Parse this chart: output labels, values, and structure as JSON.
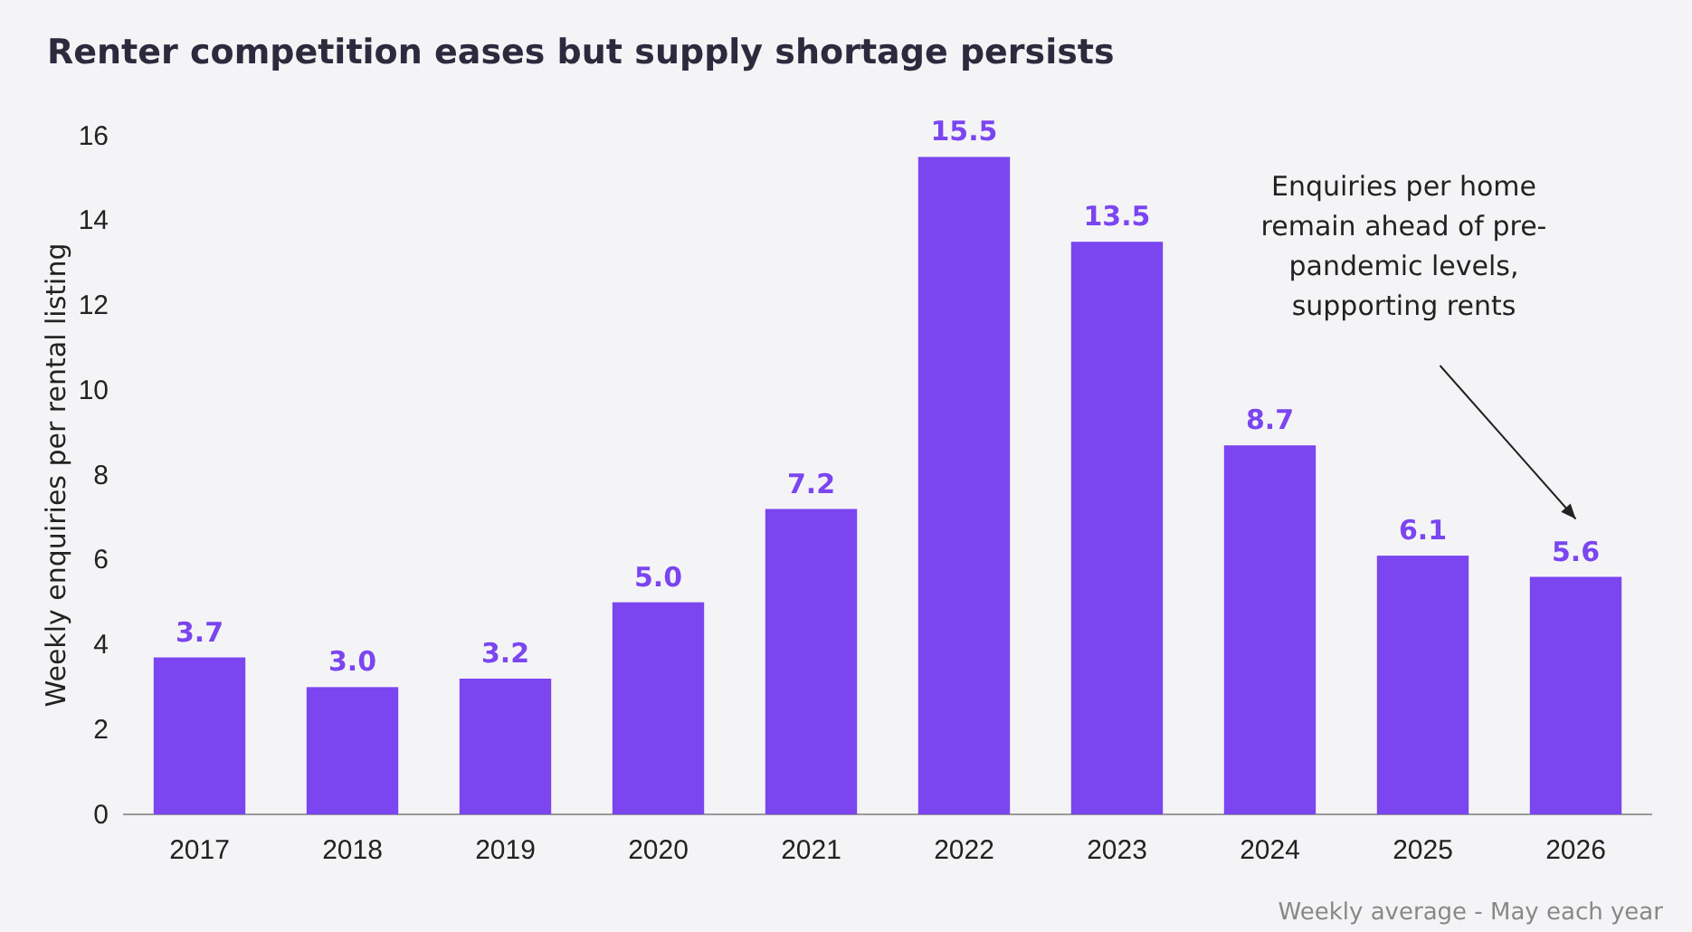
{
  "chart_data": {
    "type": "bar",
    "title": "Renter competition eases but supply shortage persists",
    "ylabel": "Weekly enquiries per rental listing",
    "categories": [
      "2017",
      "2018",
      "2019",
      "2020",
      "2021",
      "2022",
      "2023",
      "2024",
      "2025",
      "2026"
    ],
    "values": [
      3.7,
      3.0,
      3.2,
      5.0,
      7.2,
      15.5,
      13.5,
      8.7,
      6.1,
      5.6
    ],
    "color": "#7b45f0",
    "ylim": [
      0,
      16
    ],
    "yticks": [
      0,
      2,
      4,
      6,
      8,
      10,
      12,
      14,
      16
    ],
    "value_labels": [
      "3.7",
      "3.0",
      "3.2",
      "5.0",
      "7.2",
      "15.5",
      "13.5",
      "8.7",
      "6.1",
      "5.6"
    ],
    "annotations": [
      "Enquiries per home\nremain ahead of pre-\npandemic levels,\nsupporting rents",
      "Weekly average - May each year"
    ]
  }
}
